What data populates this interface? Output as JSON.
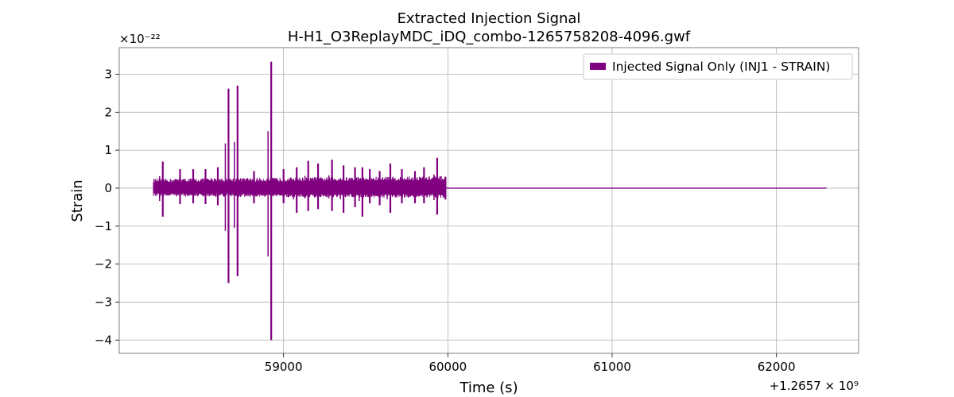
{
  "chart_data": {
    "type": "line",
    "title": "Extracted Injection Signal",
    "subtitle": "H-H1_O3ReplayMDC_iDQ_combo-1265758208-4096.gwf",
    "xlabel": "Time (s)",
    "ylabel": "Strain",
    "x_offset_label": "+1.2657 × 10⁹",
    "y_scale_label": "×10⁻²²",
    "xlim": [
      58000,
      62500
    ],
    "ylim": [
      -4.35,
      3.7
    ],
    "xticks": [
      59000,
      60000,
      61000,
      62000
    ],
    "yticks": [
      3,
      2,
      1,
      0,
      -1,
      -2,
      -3,
      -4
    ],
    "xtick_labels": [
      "59000",
      "60000",
      "61000",
      "62000"
    ],
    "ytick_labels": [
      "3",
      "2",
      "1",
      "0",
      "−1",
      "−2",
      "−3",
      "−4"
    ],
    "grid": true,
    "legend_position": "top-right",
    "series": [
      {
        "name": "Injected Signal Only (INJ1 - STRAIN)",
        "color": "#800080",
        "signal_span": [
          58208,
          59988
        ],
        "flat_end": 62304,
        "base_envelope": {
          "start": [
            0.25,
            -0.22
          ],
          "end": [
            0.32,
            -0.26
          ]
        },
        "spikes": [
          {
            "x": 58265,
            "max": 0.7,
            "min": -0.75
          },
          {
            "x": 58370,
            "max": 0.5,
            "min": -0.42
          },
          {
            "x": 58450,
            "max": 0.5,
            "min": -0.4
          },
          {
            "x": 58525,
            "max": 0.5,
            "min": -0.42
          },
          {
            "x": 58600,
            "max": 0.55,
            "min": -0.45
          },
          {
            "x": 58665,
            "max": 2.62,
            "min": -2.5
          },
          {
            "x": 58720,
            "max": 2.7,
            "min": -2.32
          },
          {
            "x": 58820,
            "max": 0.45,
            "min": -0.4
          },
          {
            "x": 58925,
            "max": 3.33,
            "min": -4.0
          },
          {
            "x": 59000,
            "max": 0.5,
            "min": -0.4
          },
          {
            "x": 59080,
            "max": 0.55,
            "min": -0.65
          },
          {
            "x": 59150,
            "max": 0.72,
            "min": -0.6
          },
          {
            "x": 59210,
            "max": 0.65,
            "min": -0.55
          },
          {
            "x": 59295,
            "max": 0.75,
            "min": -0.6
          },
          {
            "x": 59365,
            "max": 0.6,
            "min": -0.65
          },
          {
            "x": 59435,
            "max": 0.55,
            "min": -0.5
          },
          {
            "x": 59480,
            "max": 0.55,
            "min": -0.75
          },
          {
            "x": 59525,
            "max": 0.5,
            "min": -0.4
          },
          {
            "x": 59585,
            "max": 0.45,
            "min": -0.45
          },
          {
            "x": 59650,
            "max": 0.65,
            "min": -0.65
          },
          {
            "x": 59720,
            "max": 0.5,
            "min": -0.4
          },
          {
            "x": 59800,
            "max": 0.45,
            "min": -0.4
          },
          {
            "x": 59855,
            "max": 0.55,
            "min": -0.4
          },
          {
            "x": 59935,
            "max": 0.8,
            "min": -0.7
          },
          {
            "x": 59985,
            "max": 0.3,
            "min": -0.3
          }
        ]
      }
    ]
  }
}
